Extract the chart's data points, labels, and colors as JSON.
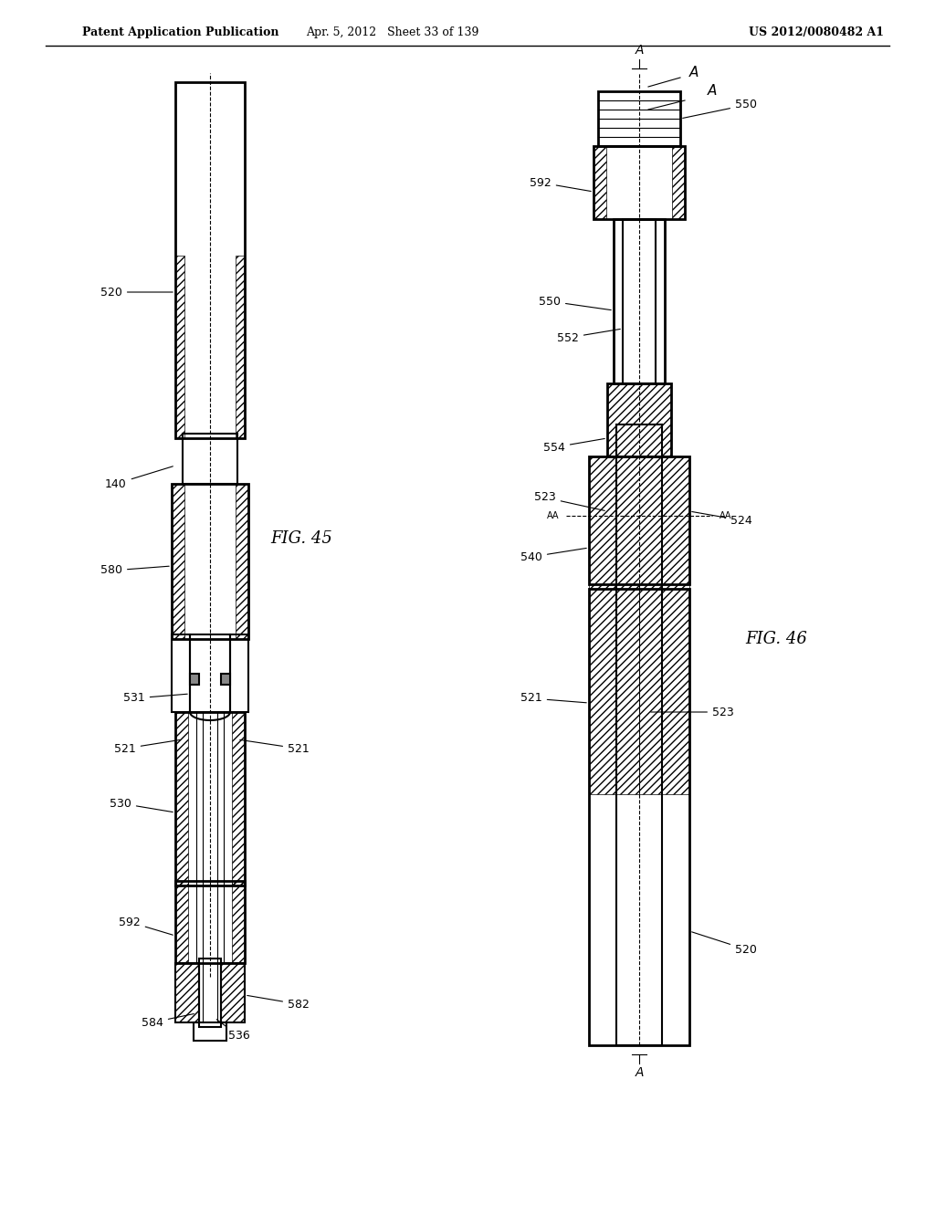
{
  "bg_color": "#ffffff",
  "header_left": "Patent Application Publication",
  "header_mid": "Apr. 5, 2012   Sheet 33 of 139",
  "header_right": "US 2012/0080482 A1",
  "fig45_label": "FIG. 45",
  "fig46_label": "FIG. 46",
  "line_color": "#000000",
  "hatch_color": "#000000"
}
